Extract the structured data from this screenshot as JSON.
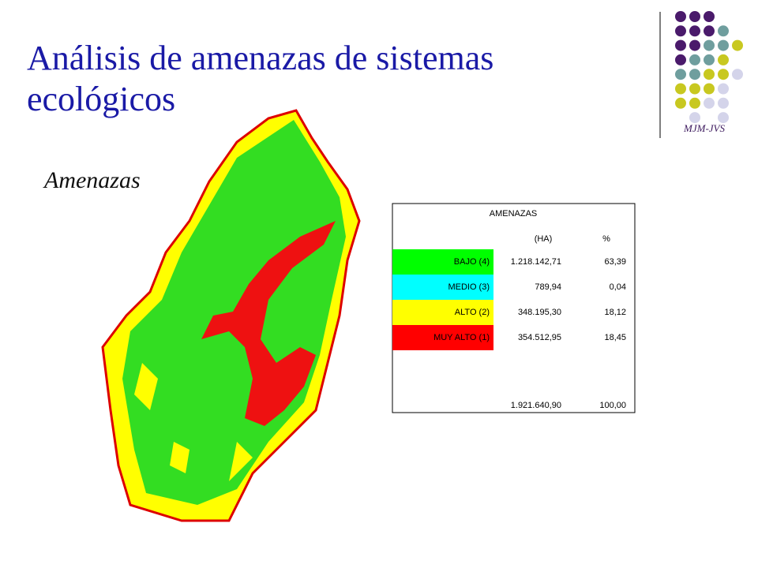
{
  "header": {
    "title_line1": "Análisis de amenazas de sistemas",
    "title_line2": "ecológicos",
    "subtitle": "Amenazas",
    "logo": "MJM-JVS"
  },
  "table": {
    "title": "AMENAZAS",
    "columns": [
      "(HA)",
      "%"
    ],
    "rows": [
      {
        "label": "BAJO (4)",
        "ha": "1.218.142,71",
        "pct": "63,39",
        "color": "#00ff00"
      },
      {
        "label": "MEDIO (3)",
        "ha": "789,94",
        "pct": "0,04",
        "color": "#00ffff"
      },
      {
        "label": "ALTO (2)",
        "ha": "348.195,30",
        "pct": "18,12",
        "color": "#ffff00"
      },
      {
        "label": "MUY ALTO (1)",
        "ha": "354.512,95",
        "pct": "18,45",
        "color": "#ff0000"
      }
    ],
    "total": {
      "ha": "1.921.640,90",
      "pct": "100,00"
    }
  }
}
